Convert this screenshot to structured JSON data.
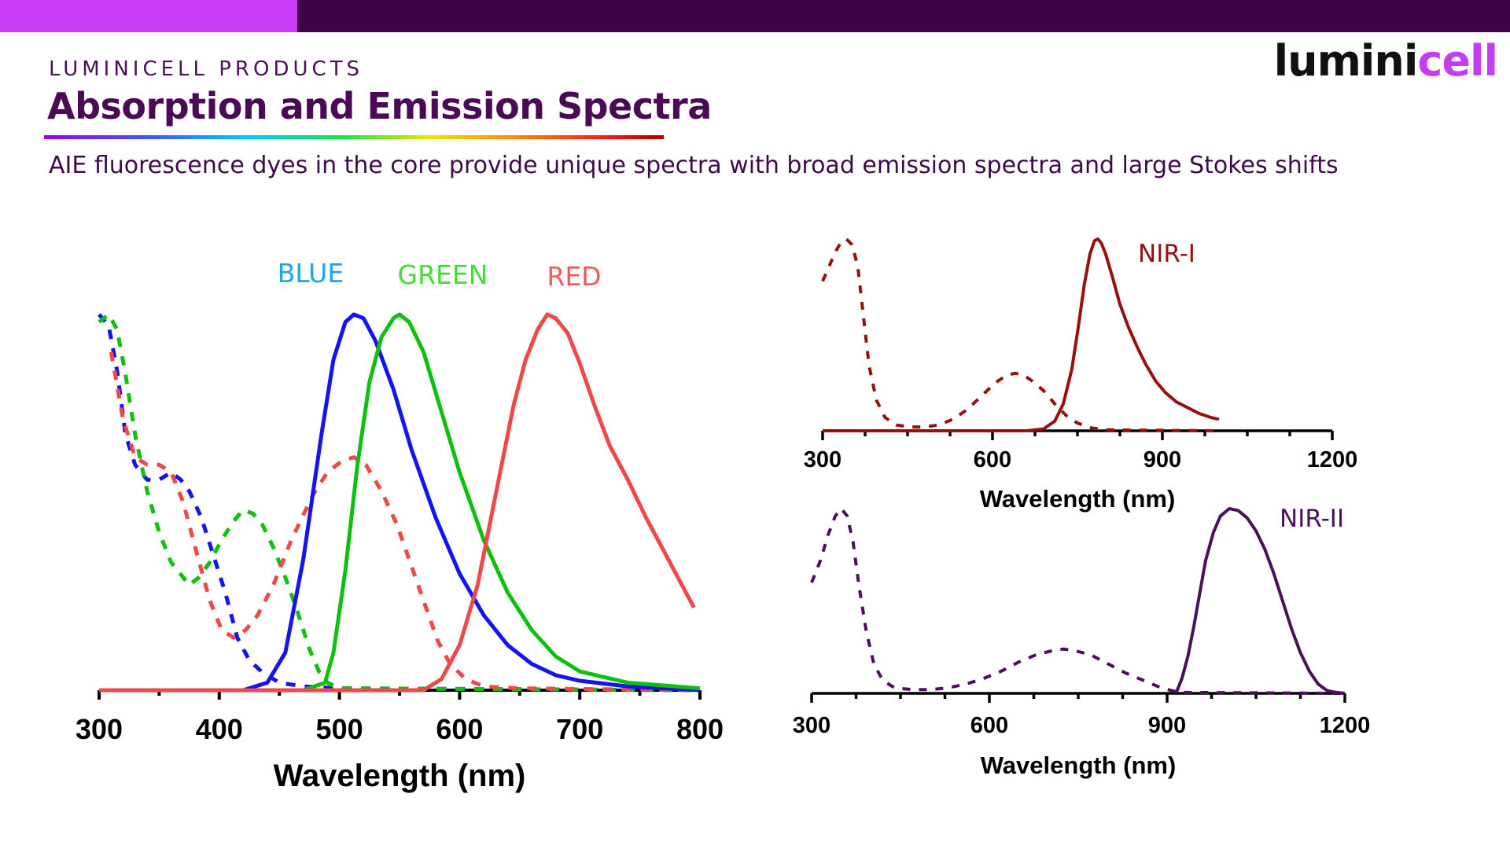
{
  "header": {
    "eyebrow": "LUMINICELL PRODUCTS",
    "title": "Absorption and Emission Spectra",
    "subtitle": "AIE fluorescence dyes in the core provide unique spectra with broad emission spectra and large Stokes shifts",
    "logo_part1": "lumini",
    "logo_part2": "cell"
  },
  "colors": {
    "topbar": "#3e0346",
    "topbar_accent": "#c83cf5",
    "blue": "#1414f0",
    "green": "#10c010",
    "red": "#f04848",
    "nir1": "#961010",
    "nir2": "#4a1158"
  },
  "chart_data": [
    {
      "type": "line",
      "xlabel": "Wavelength (nm)",
      "ylabel": "",
      "xlim": [
        300,
        800
      ],
      "ylim": [
        0,
        1
      ],
      "xticks": [
        300,
        400,
        500,
        600,
        700,
        800
      ],
      "series": [
        {
          "name": "BLUE",
          "style": "solid",
          "color": "#1414f0",
          "points": [
            [
              300,
              0
            ],
            [
              420,
              0
            ],
            [
              440,
              0.02
            ],
            [
              455,
              0.1
            ],
            [
              470,
              0.35
            ],
            [
              485,
              0.68
            ],
            [
              495,
              0.88
            ],
            [
              505,
              0.98
            ],
            [
              512,
              1.0
            ],
            [
              520,
              0.99
            ],
            [
              530,
              0.93
            ],
            [
              545,
              0.8
            ],
            [
              560,
              0.64
            ],
            [
              580,
              0.46
            ],
            [
              600,
              0.31
            ],
            [
              620,
              0.2
            ],
            [
              640,
              0.12
            ],
            [
              660,
              0.07
            ],
            [
              680,
              0.04
            ],
            [
              700,
              0.025
            ],
            [
              740,
              0.01
            ],
            [
              800,
              0.0
            ]
          ]
        },
        {
          "name": "BLUE",
          "style": "dashed",
          "color": "#1414f0",
          "points": [
            [
              300,
              1.0
            ],
            [
              308,
              0.97
            ],
            [
              315,
              0.85
            ],
            [
              322,
              0.68
            ],
            [
              330,
              0.6
            ],
            [
              340,
              0.56
            ],
            [
              350,
              0.56
            ],
            [
              360,
              0.58
            ],
            [
              368,
              0.56
            ],
            [
              375,
              0.53
            ],
            [
              385,
              0.46
            ],
            [
              395,
              0.36
            ],
            [
              405,
              0.26
            ],
            [
              415,
              0.14
            ],
            [
              425,
              0.08
            ],
            [
              435,
              0.05
            ],
            [
              450,
              0.02
            ],
            [
              470,
              0.01
            ],
            [
              500,
              0.005
            ],
            [
              800,
              0.0
            ]
          ]
        },
        {
          "name": "GREEN",
          "style": "solid",
          "color": "#10c010",
          "points": [
            [
              300,
              0
            ],
            [
              470,
              0
            ],
            [
              488,
              0.02
            ],
            [
              495,
              0.1
            ],
            [
              505,
              0.32
            ],
            [
              515,
              0.6
            ],
            [
              525,
              0.82
            ],
            [
              535,
              0.94
            ],
            [
              545,
              0.99
            ],
            [
              550,
              1.0
            ],
            [
              558,
              0.98
            ],
            [
              570,
              0.9
            ],
            [
              585,
              0.74
            ],
            [
              600,
              0.58
            ],
            [
              620,
              0.4
            ],
            [
              640,
              0.26
            ],
            [
              660,
              0.16
            ],
            [
              680,
              0.09
            ],
            [
              700,
              0.05
            ],
            [
              740,
              0.02
            ],
            [
              800,
              0.005
            ]
          ]
        },
        {
          "name": "GREEN",
          "style": "dashed",
          "color": "#10c010",
          "points": [
            [
              300,
              0.98
            ],
            [
              308,
              1.0
            ],
            [
              315,
              0.96
            ],
            [
              322,
              0.84
            ],
            [
              330,
              0.68
            ],
            [
              340,
              0.53
            ],
            [
              350,
              0.42
            ],
            [
              360,
              0.34
            ],
            [
              370,
              0.3
            ],
            [
              375,
              0.28
            ],
            [
              383,
              0.3
            ],
            [
              392,
              0.34
            ],
            [
              402,
              0.4
            ],
            [
              412,
              0.45
            ],
            [
              420,
              0.48
            ],
            [
              428,
              0.47
            ],
            [
              436,
              0.44
            ],
            [
              445,
              0.38
            ],
            [
              455,
              0.3
            ],
            [
              465,
              0.21
            ],
            [
              475,
              0.11
            ],
            [
              483,
              0.05
            ],
            [
              490,
              0.02
            ],
            [
              500,
              0.005
            ],
            [
              800,
              0.0
            ]
          ]
        },
        {
          "name": "RED",
          "style": "solid",
          "color": "#f04848",
          "points": [
            [
              300,
              0
            ],
            [
              570,
              0
            ],
            [
              585,
              0.03
            ],
            [
              600,
              0.12
            ],
            [
              615,
              0.28
            ],
            [
              630,
              0.52
            ],
            [
              645,
              0.76
            ],
            [
              655,
              0.88
            ],
            [
              665,
              0.96
            ],
            [
              673,
              1.0
            ],
            [
              680,
              0.99
            ],
            [
              690,
              0.95
            ],
            [
              700,
              0.87
            ],
            [
              712,
              0.76
            ],
            [
              725,
              0.65
            ],
            [
              740,
              0.56
            ],
            [
              755,
              0.46
            ],
            [
              770,
              0.37
            ],
            [
              785,
              0.28
            ],
            [
              795,
              0.22
            ]
          ]
        },
        {
          "name": "RED",
          "style": "dashed",
          "color": "#f04848",
          "points": [
            [
              310,
              0.9
            ],
            [
              320,
              0.72
            ],
            [
              330,
              0.62
            ],
            [
              340,
              0.6
            ],
            [
              350,
              0.6
            ],
            [
              360,
              0.58
            ],
            [
              370,
              0.5
            ],
            [
              380,
              0.38
            ],
            [
              392,
              0.24
            ],
            [
              402,
              0.16
            ],
            [
              412,
              0.14
            ],
            [
              422,
              0.16
            ],
            [
              432,
              0.2
            ],
            [
              445,
              0.28
            ],
            [
              460,
              0.4
            ],
            [
              478,
              0.52
            ],
            [
              490,
              0.58
            ],
            [
              502,
              0.61
            ],
            [
              512,
              0.62
            ],
            [
              522,
              0.6
            ],
            [
              535,
              0.53
            ],
            [
              548,
              0.44
            ],
            [
              560,
              0.33
            ],
            [
              572,
              0.22
            ],
            [
              582,
              0.13
            ],
            [
              592,
              0.07
            ],
            [
              605,
              0.03
            ],
            [
              620,
              0.01
            ],
            [
              650,
              0.005
            ],
            [
              800,
              0.0
            ]
          ]
        }
      ]
    },
    {
      "type": "line",
      "xlabel": "Wavelength (nm)",
      "ylabel": "",
      "xlim": [
        300,
        1200
      ],
      "ylim": [
        0,
        1
      ],
      "xticks": [
        300,
        600,
        900,
        1200
      ],
      "series": [
        {
          "name": "NIR-I",
          "style": "solid",
          "color": "#961010",
          "points": [
            [
              300,
              0
            ],
            [
              660,
              0
            ],
            [
              690,
              0.01
            ],
            [
              710,
              0.05
            ],
            [
              725,
              0.14
            ],
            [
              740,
              0.32
            ],
            [
              752,
              0.55
            ],
            [
              762,
              0.76
            ],
            [
              772,
              0.92
            ],
            [
              780,
              0.99
            ],
            [
              786,
              1.0
            ],
            [
              792,
              0.98
            ],
            [
              800,
              0.92
            ],
            [
              812,
              0.8
            ],
            [
              825,
              0.66
            ],
            [
              840,
              0.54
            ],
            [
              855,
              0.44
            ],
            [
              870,
              0.35
            ],
            [
              888,
              0.26
            ],
            [
              905,
              0.2
            ],
            [
              925,
              0.15
            ],
            [
              945,
              0.12
            ],
            [
              965,
              0.09
            ],
            [
              985,
              0.07
            ],
            [
              1000,
              0.06
            ]
          ]
        },
        {
          "name": "NIR-I",
          "style": "dashed",
          "color": "#961010",
          "points": [
            [
              300,
              0.78
            ],
            [
              312,
              0.86
            ],
            [
              322,
              0.93
            ],
            [
              332,
              0.98
            ],
            [
              342,
              1.0
            ],
            [
              352,
              0.97
            ],
            [
              362,
              0.86
            ],
            [
              372,
              0.6
            ],
            [
              382,
              0.34
            ],
            [
              395,
              0.16
            ],
            [
              410,
              0.07
            ],
            [
              430,
              0.03
            ],
            [
              455,
              0.02
            ],
            [
              480,
              0.02
            ],
            [
              505,
              0.03
            ],
            [
              530,
              0.06
            ],
            [
              555,
              0.11
            ],
            [
              580,
              0.18
            ],
            [
              605,
              0.25
            ],
            [
              625,
              0.29
            ],
            [
              640,
              0.3
            ],
            [
              655,
              0.29
            ],
            [
              670,
              0.26
            ],
            [
              690,
              0.21
            ],
            [
              710,
              0.14
            ],
            [
              730,
              0.08
            ],
            [
              750,
              0.04
            ],
            [
              775,
              0.015
            ],
            [
              800,
              0.005
            ],
            [
              1000,
              0.0
            ]
          ]
        },
        {
          "name": "NIR-II",
          "style": "solid",
          "color": "#4a1158",
          "points": [
            [
              915,
              0.0
            ],
            [
              925,
              0.08
            ],
            [
              935,
              0.2
            ],
            [
              945,
              0.36
            ],
            [
              955,
              0.54
            ],
            [
              965,
              0.72
            ],
            [
              978,
              0.87
            ],
            [
              990,
              0.96
            ],
            [
              1005,
              1.0
            ],
            [
              1020,
              0.99
            ],
            [
              1035,
              0.95
            ],
            [
              1050,
              0.88
            ],
            [
              1065,
              0.78
            ],
            [
              1080,
              0.65
            ],
            [
              1095,
              0.5
            ],
            [
              1110,
              0.35
            ],
            [
              1125,
              0.22
            ],
            [
              1140,
              0.12
            ],
            [
              1155,
              0.05
            ],
            [
              1170,
              0.015
            ],
            [
              1185,
              0.005
            ],
            [
              1200,
              0.0
            ]
          ]
        },
        {
          "name": "NIR-II",
          "style": "dashed",
          "color": "#4a1158",
          "points": [
            [
              300,
              0.6
            ],
            [
              315,
              0.72
            ],
            [
              328,
              0.86
            ],
            [
              340,
              0.96
            ],
            [
              350,
              1.0
            ],
            [
              360,
              0.96
            ],
            [
              370,
              0.82
            ],
            [
              380,
              0.58
            ],
            [
              392,
              0.34
            ],
            [
              405,
              0.16
            ],
            [
              420,
              0.07
            ],
            [
              440,
              0.03
            ],
            [
              470,
              0.02
            ],
            [
              500,
              0.02
            ],
            [
              530,
              0.03
            ],
            [
              560,
              0.05
            ],
            [
              590,
              0.08
            ],
            [
              620,
              0.12
            ],
            [
              650,
              0.17
            ],
            [
              680,
              0.21
            ],
            [
              705,
              0.23
            ],
            [
              725,
              0.24
            ],
            [
              745,
              0.23
            ],
            [
              770,
              0.21
            ],
            [
              800,
              0.16
            ],
            [
              830,
              0.11
            ],
            [
              860,
              0.07
            ],
            [
              890,
              0.03
            ],
            [
              920,
              0.005
            ],
            [
              1200,
              0.0
            ]
          ]
        }
      ]
    }
  ]
}
